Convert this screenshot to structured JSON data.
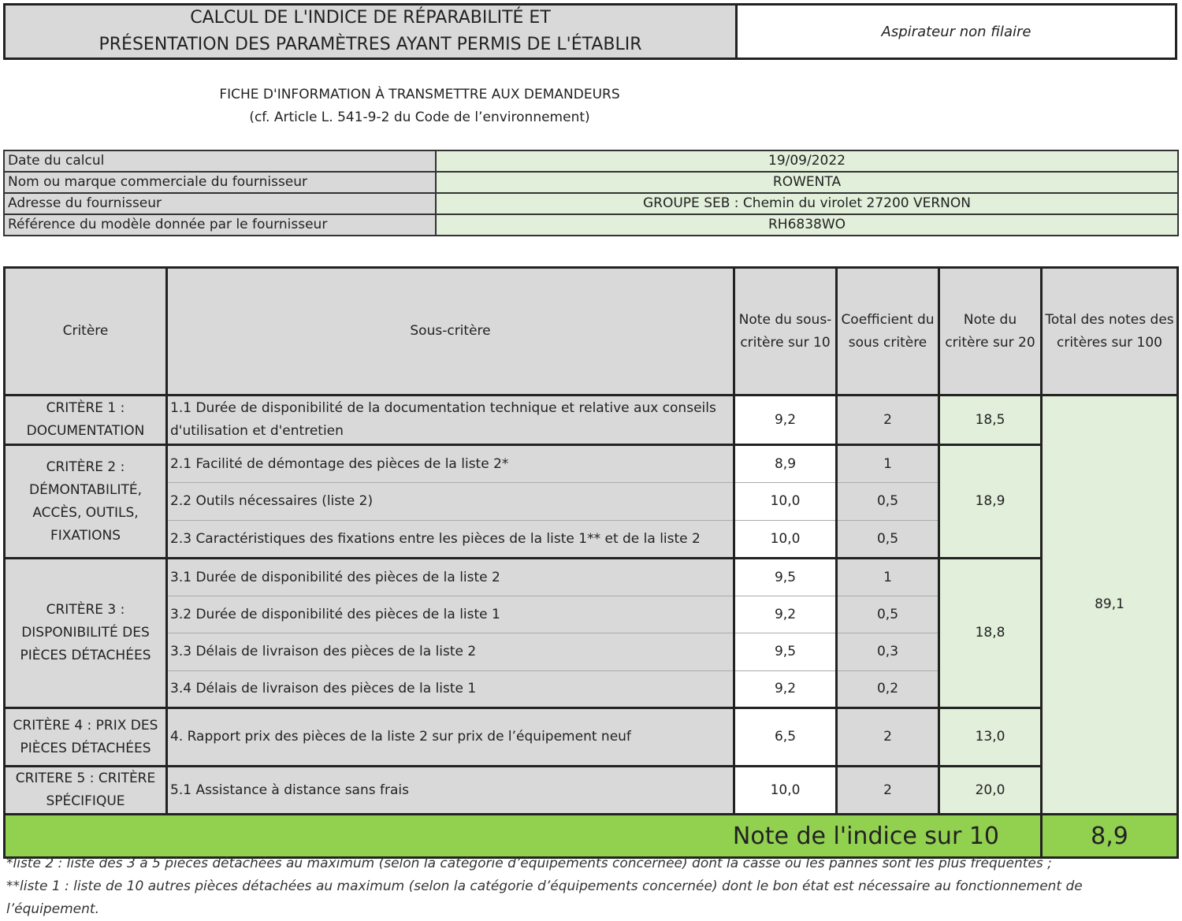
{
  "header": {
    "title_line1": "CALCUL DE L'INDICE DE RÉPARABILITÉ ET",
    "title_line2": "PRÉSENTATION DES PARAMÈTRES AYANT PERMIS DE L'ÉTABLIR",
    "product_type": "Aspirateur non filaire"
  },
  "subtitle": {
    "line1": "FICHE D'INFORMATION À TRANSMETTRE AUX DEMANDEURS",
    "line2": "(cf. Article L. 541-9-2 du Code de l’environnement)"
  },
  "info": [
    {
      "label": "Date du calcul",
      "value": "19/09/2022"
    },
    {
      "label": "Nom ou marque commerciale du fournisseur",
      "value": "ROWENTA"
    },
    {
      "label": "Adresse du fournisseur",
      "value": "GROUPE SEB : Chemin du virolet 27200 VERNON"
    },
    {
      "label": "Référence du modèle donnée par le fournisseur",
      "value": "RH6838WO"
    }
  ],
  "columns": {
    "critere": "Critère",
    "sous_critere": "Sous-critère",
    "note_sous": "Note du sous-critère sur 10",
    "coef": "Coefficient du sous critère",
    "note_crit": "Note du critère sur 20",
    "total": "Total des notes des critères sur 100"
  },
  "criteria": [
    {
      "name": "CRITÈRE 1 : DOCUMENTATION",
      "score": "18,5",
      "subs": [
        {
          "label": "1.1 Durée de disponibilité de la documentation technique et relative aux conseils d'utilisation et d'entretien",
          "note": "9,2",
          "coef": "2"
        }
      ]
    },
    {
      "name": "CRITÈRE 2 : DÉMONTABILITÉ, ACCÈS, OUTILS, FIXATIONS",
      "score": "18,9",
      "subs": [
        {
          "label": "2.1 Facilité de démontage des pièces de la liste 2*",
          "note": "8,9",
          "coef": "1"
        },
        {
          "label": "2.2 Outils nécessaires (liste 2)",
          "note": "10,0",
          "coef": "0,5"
        },
        {
          "label": "2.3 Caractéristiques des fixations entre les pièces de la liste 1** et de la liste 2",
          "note": "10,0",
          "coef": "0,5"
        }
      ]
    },
    {
      "name": "CRITÈRE 3 : DISPONIBILITÉ DES PIÈCES DÉTACHÉES",
      "score": "18,8",
      "subs": [
        {
          "label": "3.1 Durée de disponibilité des pièces de la liste 2",
          "note": "9,5",
          "coef": "1"
        },
        {
          "label": "3.2 Durée de disponibilité des pièces de la liste 1",
          "note": "9,2",
          "coef": "0,5"
        },
        {
          "label": "3.3 Délais de livraison des pièces de la liste 2",
          "note": "9,5",
          "coef": "0,3"
        },
        {
          "label": "3.4 Délais de livraison des pièces de la liste 1",
          "note": "9,2",
          "coef": "0,2"
        }
      ]
    },
    {
      "name": "CRITÈRE 4 : PRIX DES PIÈCES DÉTACHÉES",
      "score": "13,0",
      "subs": [
        {
          "label": "4. Rapport prix des pièces de la liste 2 sur prix de l’équipement neuf",
          "note": "6,5",
          "coef": "2"
        }
      ]
    },
    {
      "name": "CRITERE 5 : CRITÈRE SPÉCIFIQUE",
      "score": "20,0",
      "subs": [
        {
          "label": "5.1 Assistance à distance sans frais",
          "note": "10,0",
          "coef": "2"
        }
      ]
    }
  ],
  "total": "89,1",
  "index": {
    "label": "Note de l'indice sur 10",
    "value": "8,9"
  },
  "footnotes": [
    "*liste 2 : liste des 3 à 5 pièces détachées au maximum (selon la catégorie d’équipements concernée) dont la casse ou les pannes sont les plus fréquentes ;",
    "**liste 1 : liste de 10 autres pièces détachées au maximum (selon la catégorie d’équipements concernée) dont le bon état est nécessaire au fonctionnement de l’équipement."
  ],
  "colors": {
    "gray": "#d9d9d9",
    "light_green": "#e2efda",
    "green": "#92d050"
  }
}
